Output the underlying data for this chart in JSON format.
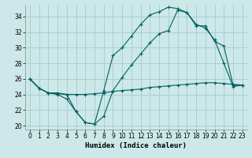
{
  "xlabel": "Humidex (Indice chaleur)",
  "xlim": [
    -0.5,
    23.5
  ],
  "ylim": [
    19.5,
    35.5
  ],
  "yticks": [
    20,
    22,
    24,
    26,
    28,
    30,
    32,
    34
  ],
  "xticks": [
    0,
    1,
    2,
    3,
    4,
    5,
    6,
    7,
    8,
    9,
    10,
    11,
    12,
    13,
    14,
    15,
    16,
    17,
    18,
    19,
    20,
    21,
    22,
    23
  ],
  "bg_color": "#cce8e8",
  "grid_color": "#aad0d0",
  "line_color": "#006060",
  "line1_x": [
    0,
    1,
    2,
    3,
    4,
    5,
    6,
    7,
    8,
    9,
    10,
    11,
    12,
    13,
    14,
    15,
    16,
    17,
    18,
    19,
    20,
    21,
    22,
    23
  ],
  "line1_y": [
    26.0,
    24.8,
    24.2,
    24.2,
    24.0,
    21.8,
    20.4,
    20.2,
    24.5,
    29.0,
    30.0,
    31.5,
    33.0,
    34.2,
    34.6,
    35.2,
    35.0,
    34.5,
    33.0,
    32.5,
    31.0,
    28.0,
    25.0,
    25.2
  ],
  "line2_x": [
    0,
    1,
    2,
    3,
    4,
    5,
    6,
    7,
    8,
    9,
    10,
    11,
    12,
    13,
    14,
    15,
    16,
    17,
    18,
    19,
    20,
    21,
    22,
    23
  ],
  "line2_y": [
    26.0,
    24.8,
    24.2,
    24.1,
    24.0,
    24.0,
    24.0,
    24.1,
    24.2,
    24.4,
    24.5,
    24.6,
    24.7,
    24.9,
    25.0,
    25.1,
    25.2,
    25.3,
    25.4,
    25.5,
    25.5,
    25.4,
    25.3,
    25.2
  ],
  "line3_x": [
    0,
    1,
    2,
    3,
    4,
    5,
    6,
    7,
    8,
    9,
    10,
    11,
    12,
    13,
    14,
    15,
    16,
    17,
    18,
    19,
    20,
    21,
    22,
    23
  ],
  "line3_y": [
    26.0,
    24.8,
    24.2,
    24.0,
    23.4,
    21.8,
    20.4,
    20.2,
    21.2,
    24.5,
    26.2,
    27.8,
    29.2,
    30.6,
    31.8,
    32.2,
    34.8,
    34.5,
    32.8,
    32.8,
    30.8,
    30.2,
    25.2,
    25.2
  ]
}
